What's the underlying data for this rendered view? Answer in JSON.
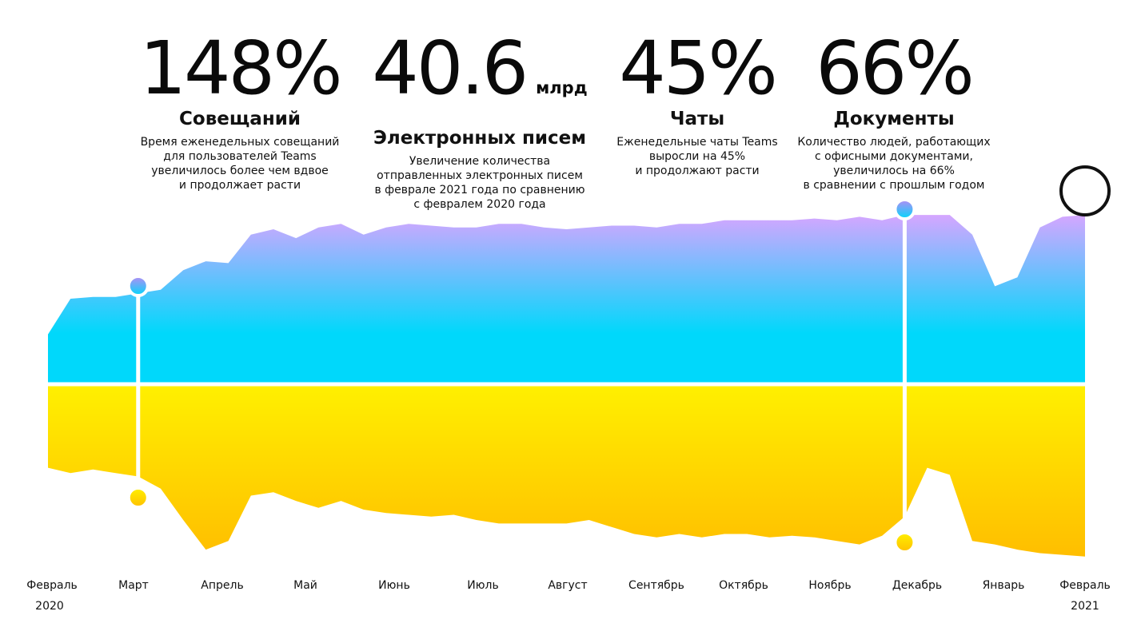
{
  "stats": [
    {
      "value": "148%",
      "unit": "",
      "label": "Совещаний",
      "desc": [
        "Время еженедельных совещаний",
        "для пользователей Teams",
        "увеличилось более чем вдвое",
        "и продолжает расти"
      ]
    },
    {
      "value": "40.6",
      "unit": "млрд",
      "label": "Электронных писем",
      "desc": [
        "Увеличение количества",
        "отправленных электронных писем",
        "в феврале 2021 года по сравнению",
        "с февралем 2020 года"
      ]
    },
    {
      "value": "45%",
      "unit": "",
      "label": "Чаты",
      "desc": [
        "Еженедельные чаты Teams",
        "выросли на 45%",
        "и продолжают расти"
      ]
    },
    {
      "value": "66%",
      "unit": "",
      "label": "Документы",
      "desc": [
        "Количество людей, работающих",
        "с офисными документами,",
        "увеличилось на 66%",
        "в сравнении с прошлым годом"
      ]
    }
  ],
  "chart_data": {
    "type": "area",
    "x_ticks": [
      "Февраль",
      "Март",
      "Апрель",
      "Май",
      "Июнь",
      "Июль",
      "Август",
      "Сентябрь",
      "Октябрь",
      "Ноябрь",
      "Декабрь",
      "Январь",
      "Февраль"
    ],
    "year_labels": [
      "2020",
      "2021"
    ],
    "grid": false,
    "series": [
      {
        "colors": [
          "#d5a6ff",
          "#00d8fb"
        ],
        "values": [
          0.28,
          0.48,
          0.49,
          0.49,
          0.51,
          0.53,
          0.64,
          0.69,
          0.68,
          0.84,
          0.87,
          0.82,
          0.88,
          0.9,
          0.84,
          0.88,
          0.9,
          0.89,
          0.88,
          0.88,
          0.9,
          0.9,
          0.88,
          0.87,
          0.88,
          0.89,
          0.89,
          0.88,
          0.9,
          0.9,
          0.92,
          0.92,
          0.92,
          0.92,
          0.93,
          0.92,
          0.94,
          0.92,
          0.95,
          0.95,
          0.95,
          0.84,
          0.55,
          0.6,
          0.88,
          0.94,
          0.95
        ]
      },
      {
        "colors": [
          "#fff000",
          "#ffbe00"
        ],
        "values": [
          0.48,
          0.51,
          0.49,
          0.51,
          0.53,
          0.6,
          0.78,
          0.95,
          0.9,
          0.64,
          0.62,
          0.67,
          0.71,
          0.67,
          0.72,
          0.74,
          0.75,
          0.76,
          0.75,
          0.78,
          0.8,
          0.8,
          0.8,
          0.8,
          0.78,
          0.82,
          0.86,
          0.88,
          0.86,
          0.88,
          0.86,
          0.86,
          0.88,
          0.87,
          0.88,
          0.9,
          0.92,
          0.87,
          0.76,
          0.48,
          0.52,
          0.9,
          0.92,
          0.95,
          0.97,
          0.98,
          0.99
        ]
      }
    ]
  }
}
